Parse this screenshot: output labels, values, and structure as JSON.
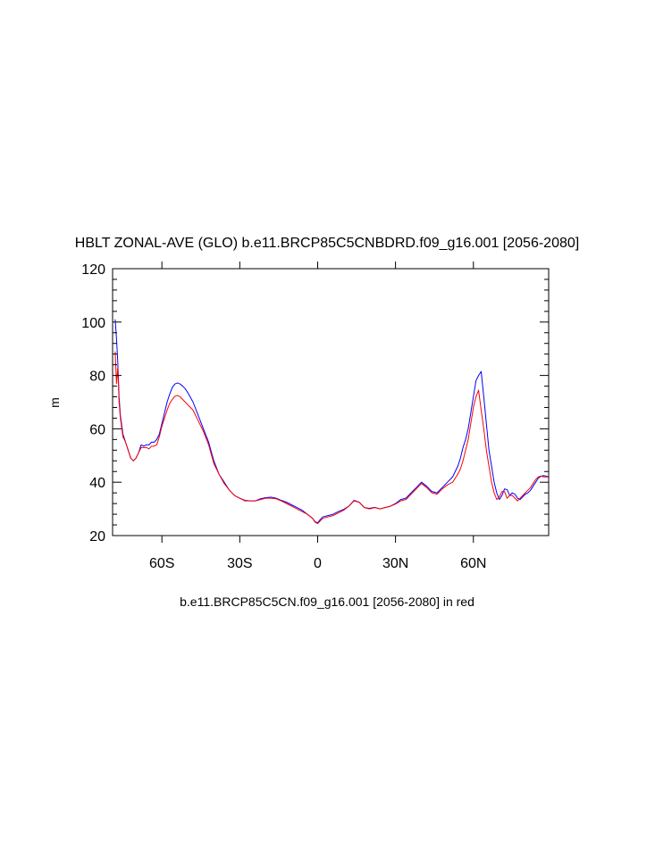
{
  "chart_data": {
    "type": "line",
    "title": "HBLT ZONAL-AVE (GLO) b.e11.BRCP85C5CNBDRD.f09_g16.001 [2056-2080]",
    "xlabel": "b.e11.BRCP85C5CN.f09_g16.001 [2056-2080] in red",
    "ylabel": "m",
    "xlim": [
      -79,
      89
    ],
    "ylim": [
      20,
      120
    ],
    "x_ticks": [
      {
        "value": -60,
        "label": "60S"
      },
      {
        "value": -30,
        "label": "30S"
      },
      {
        "value": 0,
        "label": "0"
      },
      {
        "value": 30,
        "label": "30N"
      },
      {
        "value": 60,
        "label": "60N"
      }
    ],
    "y_ticks": [
      {
        "value": 20,
        "label": "20"
      },
      {
        "value": 40,
        "label": "40"
      },
      {
        "value": 60,
        "label": "60"
      },
      {
        "value": 80,
        "label": "80"
      },
      {
        "value": 100,
        "label": "100"
      },
      {
        "value": 120,
        "label": "120"
      }
    ],
    "grid": false,
    "series": [
      {
        "color": "#0000ff",
        "x": [
          -78.0,
          -77.5,
          -77.0,
          -76.5,
          -76.0,
          -75.0,
          -74.0,
          -73.0,
          -72.0,
          -71.0,
          -70.0,
          -69.0,
          -68.0,
          -67.0,
          -66.0,
          -65.0,
          -64.0,
          -63.0,
          -62.0,
          -61.0,
          -60.0,
          -59.0,
          -58.0,
          -57.0,
          -56.0,
          -55.0,
          -54.0,
          -53.0,
          -52.0,
          -51.0,
          -50.0,
          -48.0,
          -46.0,
          -44.0,
          -42.0,
          -40.0,
          -38.0,
          -36.0,
          -34.0,
          -32.0,
          -30.0,
          -28.0,
          -26.0,
          -24.0,
          -22.0,
          -20.0,
          -18.0,
          -16.0,
          -14.0,
          -12.0,
          -10.0,
          -8.0,
          -6.0,
          -4.0,
          -2.0,
          -1.0,
          0.0,
          1.0,
          2.0,
          4.0,
          6.0,
          8.0,
          10.0,
          12.0,
          14.0,
          16.0,
          18.0,
          20.0,
          22.0,
          24.0,
          26.0,
          28.0,
          30.0,
          32.0,
          34.0,
          36.0,
          38.0,
          40.0,
          42.0,
          44.0,
          46.0,
          48.0,
          50.0,
          52.0,
          54.0,
          55.0,
          56.0,
          57.0,
          58.0,
          59.0,
          60.0,
          61.0,
          62.0,
          63.0,
          64.0,
          65.0,
          66.0,
          67.0,
          68.0,
          69.0,
          70.0,
          71.0,
          72.0,
          73.0,
          74.0,
          75.0,
          76.0,
          77.0,
          78.0,
          79.0,
          80.0,
          81.0,
          82.0,
          83.0,
          84.0,
          85.0,
          86.0,
          87.0,
          88.0,
          89.0
        ],
        "y": [
          101.0,
          94.0,
          85.0,
          72.0,
          65.0,
          58.0,
          55.0,
          52.0,
          49.0,
          48.0,
          49.0,
          51.0,
          54.0,
          53.5,
          54.0,
          54.0,
          55.0,
          55.0,
          56.0,
          58.0,
          62.0,
          66.0,
          70.0,
          73.0,
          75.5,
          76.8,
          77.2,
          76.8,
          76.0,
          75.0,
          73.5,
          70.0,
          65.0,
          60.0,
          55.0,
          48.0,
          43.0,
          40.0,
          37.0,
          35.0,
          34.0,
          33.2,
          33.0,
          33.0,
          33.8,
          34.2,
          34.4,
          34.0,
          33.2,
          32.5,
          31.5,
          30.5,
          29.5,
          28.0,
          26.5,
          25.2,
          24.8,
          26.0,
          27.0,
          27.5,
          28.0,
          29.0,
          29.8,
          31.0,
          33.2,
          32.5,
          30.5,
          30.2,
          30.6,
          30.0,
          30.5,
          31.0,
          32.0,
          33.5,
          34.0,
          36.0,
          38.0,
          40.0,
          38.5,
          36.5,
          36.0,
          38.0,
          40.0,
          42.0,
          46.0,
          49.0,
          53.0,
          56.0,
          60.0,
          66.0,
          72.0,
          78.0,
          80.0,
          81.5,
          72.0,
          62.0,
          52.0,
          46.0,
          40.0,
          36.0,
          33.5,
          35.0,
          37.5,
          37.2,
          35.0,
          36.0,
          35.5,
          34.0,
          33.5,
          34.5,
          35.5,
          36.0,
          37.0,
          38.5,
          40.0,
          41.5,
          42.2,
          42.5,
          42.3,
          42.0
        ],
        "sample_every": 1
      },
      {
        "color": "#ff0000",
        "x": [
          -78.0,
          -77.5,
          -77.0,
          -76.5,
          -76.0,
          -75.0,
          -74.0,
          -73.0,
          -72.0,
          -71.0,
          -70.0,
          -69.0,
          -68.0,
          -67.0,
          -66.0,
          -65.0,
          -64.0,
          -63.0,
          -62.0,
          -61.0,
          -60.0,
          -59.0,
          -58.0,
          -57.0,
          -56.0,
          -55.0,
          -54.0,
          -53.0,
          -52.0,
          -51.0,
          -50.0,
          -48.0,
          -46.0,
          -44.0,
          -42.0,
          -40.0,
          -38.0,
          -36.0,
          -34.0,
          -32.0,
          -30.0,
          -28.0,
          -26.0,
          -24.0,
          -22.0,
          -20.0,
          -18.0,
          -16.0,
          -14.0,
          -12.0,
          -10.0,
          -8.0,
          -6.0,
          -4.0,
          -2.0,
          -1.0,
          0.0,
          1.0,
          2.0,
          4.0,
          6.0,
          8.0,
          10.0,
          12.0,
          14.0,
          16.0,
          18.0,
          20.0,
          22.0,
          24.0,
          26.0,
          28.0,
          30.0,
          32.0,
          34.0,
          36.0,
          38.0,
          40.0,
          42.0,
          44.0,
          46.0,
          48.0,
          50.0,
          52.0,
          54.0,
          55.0,
          56.0,
          57.0,
          58.0,
          59.0,
          60.0,
          61.0,
          62.0,
          63.0,
          64.0,
          65.0,
          66.0,
          67.0,
          68.0,
          69.0,
          70.0,
          71.0,
          72.0,
          73.0,
          74.0,
          75.0,
          76.0,
          77.0,
          78.0,
          79.0,
          80.0,
          81.0,
          82.0,
          83.0,
          84.0,
          85.0,
          86.0,
          87.0,
          88.0,
          89.0
        ],
        "y": [
          89.0,
          77.0,
          83.0,
          70.0,
          64.0,
          57.0,
          55.0,
          52.0,
          49.0,
          48.0,
          49.0,
          51.0,
          53.0,
          53.0,
          53.0,
          52.5,
          53.5,
          53.5,
          54.0,
          57.0,
          61.0,
          64.0,
          67.0,
          69.5,
          71.0,
          72.2,
          72.5,
          72.0,
          71.0,
          70.0,
          69.0,
          67.0,
          63.0,
          59.0,
          54.0,
          47.0,
          43.0,
          39.5,
          37.0,
          35.0,
          34.0,
          33.0,
          33.0,
          33.0,
          33.5,
          34.0,
          34.0,
          33.8,
          33.0,
          32.0,
          31.0,
          30.0,
          29.0,
          28.0,
          26.5,
          25.0,
          24.5,
          25.5,
          26.5,
          27.0,
          27.5,
          28.5,
          29.5,
          31.0,
          33.0,
          32.5,
          30.5,
          30.0,
          30.5,
          30.0,
          30.5,
          31.0,
          31.8,
          33.0,
          33.5,
          35.5,
          37.5,
          39.5,
          38.0,
          36.0,
          35.5,
          37.5,
          39.0,
          40.0,
          43.0,
          45.0,
          48.0,
          52.0,
          56.0,
          62.0,
          68.0,
          72.0,
          74.5,
          67.0,
          60.0,
          52.0,
          46.0,
          40.0,
          36.0,
          33.5,
          34.5,
          36.5,
          36.5,
          34.0,
          35.0,
          35.0,
          34.0,
          33.0,
          34.0,
          35.0,
          36.0,
          37.0,
          38.0,
          39.5,
          41.0,
          42.0,
          42.3,
          42.0,
          42.0,
          42.0
        ],
        "sample_every": 1
      }
    ]
  }
}
